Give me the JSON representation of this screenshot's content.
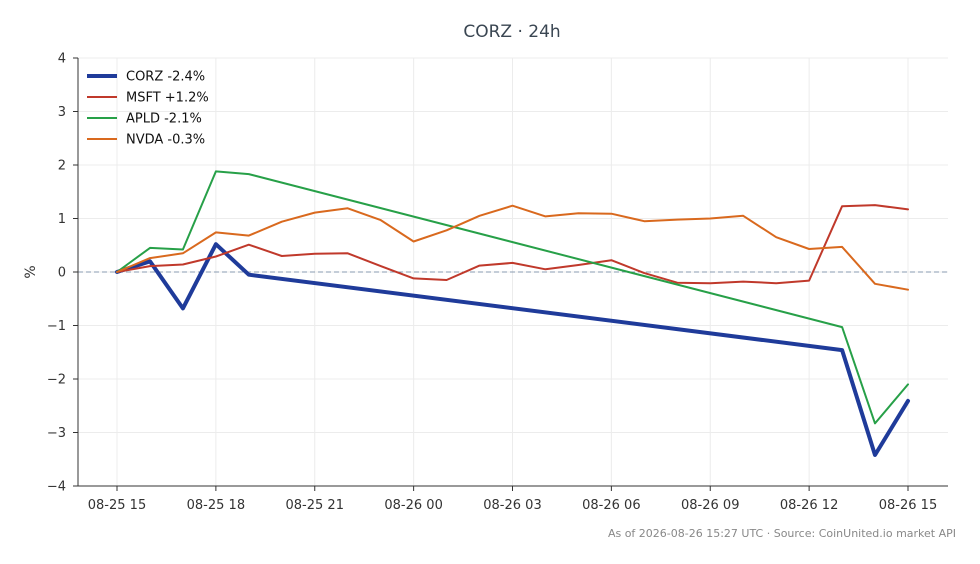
{
  "chart_data": {
    "type": "line",
    "title": "CORZ · 24h",
    "xlabel": "",
    "ylabel": "%",
    "ylim": [
      -4,
      4
    ],
    "y_ticks": [
      -4,
      -3,
      -2,
      -1,
      0,
      1,
      2,
      3,
      4
    ],
    "y_tick_labels": [
      "−4",
      "−3",
      "−2",
      "−1",
      "0",
      "1",
      "2",
      "3",
      "4"
    ],
    "x_ticks": [
      0,
      3,
      6,
      9,
      12,
      15,
      18,
      21,
      24
    ],
    "x_tick_labels": [
      "08-25 15",
      "08-25 18",
      "08-25 21",
      "08-26 00",
      "08-26 03",
      "08-26 06",
      "08-26 09",
      "08-26 12",
      "08-26 15"
    ],
    "grid": true,
    "legend_position": "top-left",
    "reference_line": 0,
    "series": [
      {
        "name": "CORZ -2.4%",
        "color": "#1f3b9a",
        "x": [
          0,
          1,
          2,
          3,
          4,
          22,
          23,
          24
        ],
        "values": [
          0.0,
          0.2,
          -0.68,
          0.52,
          -0.05,
          -1.46,
          -3.42,
          -2.41
        ]
      },
      {
        "name": "MSFT +1.2%",
        "color": "#c0392b",
        "x": [
          0,
          1,
          2,
          3,
          4,
          5,
          6,
          7,
          8,
          9,
          10,
          11,
          12,
          13,
          14,
          15,
          16,
          17,
          18,
          19,
          20,
          21,
          22,
          23,
          24
        ],
        "values": [
          0.0,
          0.11,
          0.14,
          0.29,
          0.51,
          0.3,
          0.34,
          0.35,
          0.11,
          -0.12,
          -0.15,
          0.12,
          0.17,
          0.05,
          0.13,
          0.22,
          -0.02,
          -0.2,
          -0.21,
          -0.18,
          -0.21,
          -0.16,
          1.23,
          1.25,
          1.17
        ]
      },
      {
        "name": "APLD -2.1%",
        "color": "#27a048",
        "x": [
          0,
          1,
          2,
          3,
          4,
          22,
          23,
          24
        ],
        "values": [
          0.0,
          0.45,
          0.42,
          1.88,
          1.83,
          -1.03,
          -2.83,
          -2.1
        ]
      },
      {
        "name": "NVDA -0.3%",
        "color": "#d9691e",
        "x": [
          0,
          1,
          2,
          3,
          4,
          5,
          6,
          7,
          8,
          9,
          10,
          11,
          12,
          13,
          14,
          15,
          16,
          17,
          18,
          19,
          20,
          21,
          22,
          23,
          24
        ],
        "values": [
          0.0,
          0.26,
          0.35,
          0.74,
          0.68,
          0.94,
          1.11,
          1.19,
          0.97,
          0.57,
          0.78,
          1.05,
          1.24,
          1.04,
          1.1,
          1.09,
          0.95,
          0.98,
          1.0,
          1.05,
          0.65,
          0.43,
          0.47,
          -0.22,
          -0.33
        ]
      }
    ],
    "footer": "As of 2026-08-26 15:27 UTC · Source: CoinUnited.io market API"
  }
}
